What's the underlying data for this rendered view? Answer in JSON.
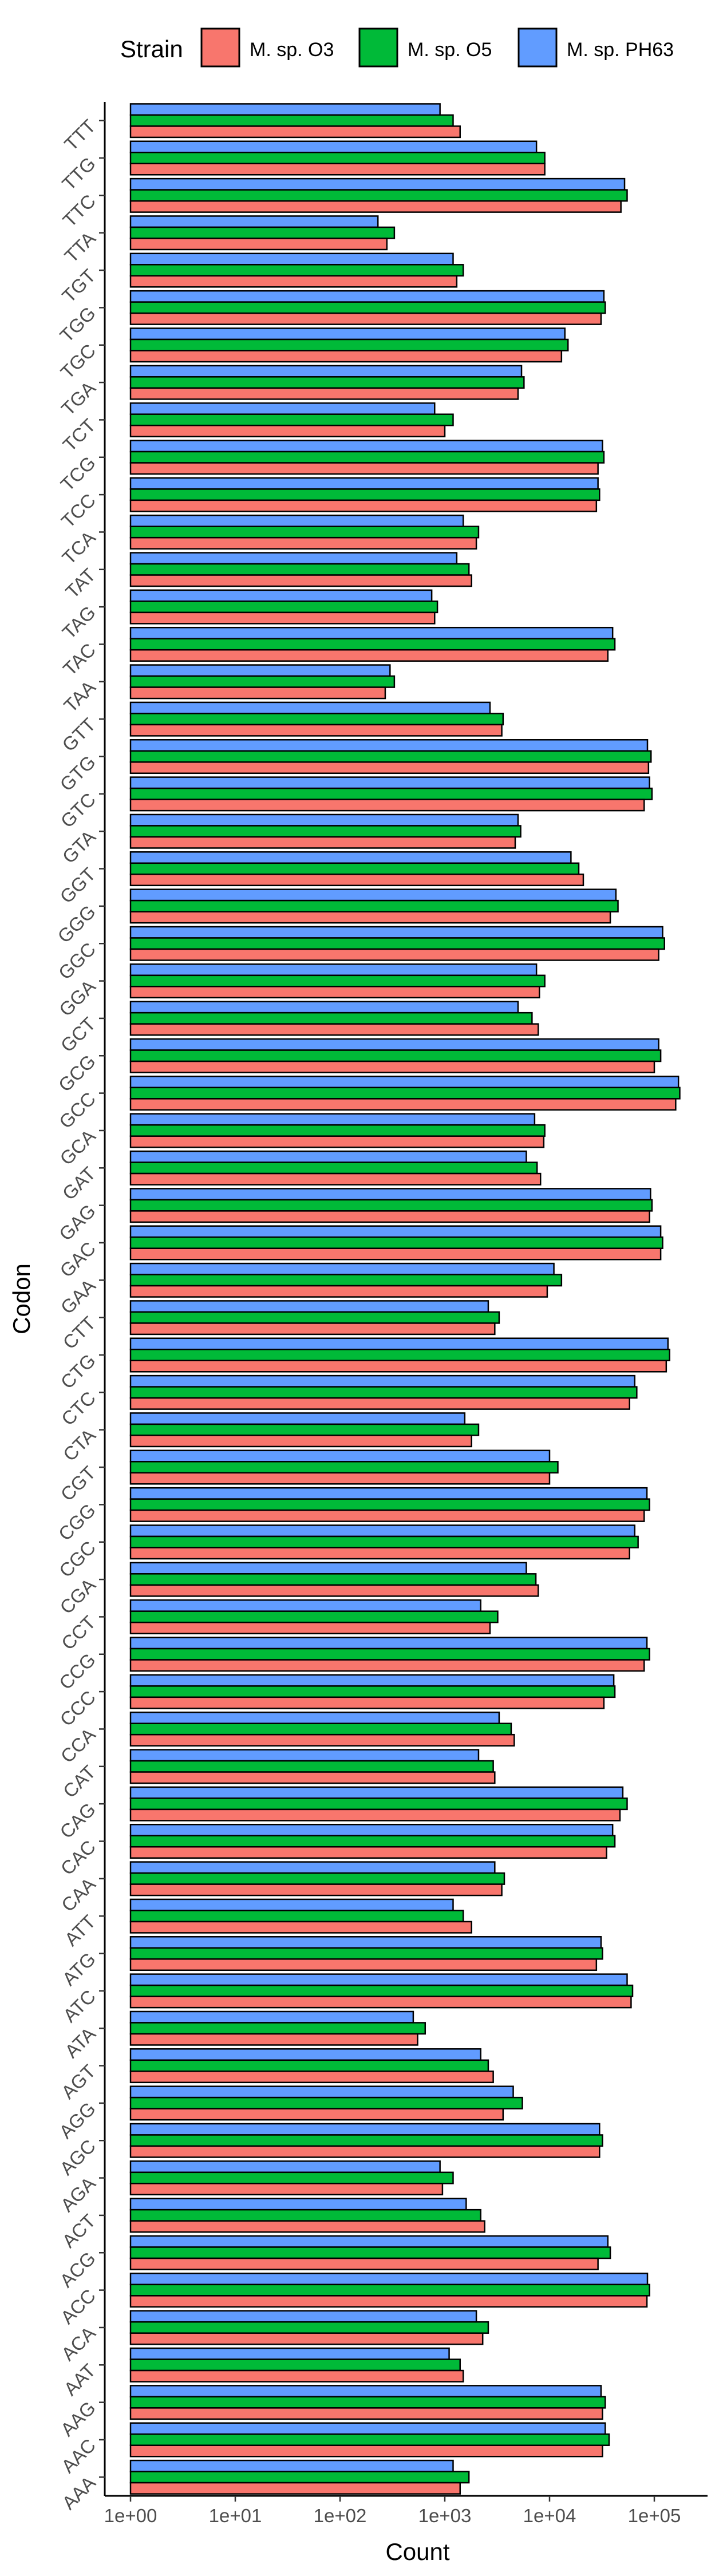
{
  "chart_data": {
    "type": "bar",
    "orientation": "horizontal",
    "xlabel": "Count",
    "ylabel": "Codon",
    "x_scale": "log10",
    "xlim": [
      1,
      200000
    ],
    "x_ticks": [
      {
        "value": 1,
        "label": "1e+00"
      },
      {
        "value": 10,
        "label": "1e+01"
      },
      {
        "value": 100,
        "label": "1e+02"
      },
      {
        "value": 1000,
        "label": "1e+03"
      },
      {
        "value": 10000,
        "label": "1e+04"
      },
      {
        "value": 100000,
        "label": "1e+05"
      }
    ],
    "grid": false,
    "legend": {
      "title": "Strain",
      "position": "top"
    },
    "categories": [
      "TTT",
      "TTG",
      "TTC",
      "TTA",
      "TGT",
      "TGG",
      "TGC",
      "TGA",
      "TCT",
      "TCG",
      "TCC",
      "TCA",
      "TAT",
      "TAG",
      "TAC",
      "TAA",
      "GTT",
      "GTG",
      "GTC",
      "GTA",
      "GGT",
      "GGG",
      "GGC",
      "GGA",
      "GCT",
      "GCG",
      "GCC",
      "GCA",
      "GAT",
      "GAG",
      "GAC",
      "GAA",
      "CTT",
      "CTG",
      "CTC",
      "CTA",
      "CGT",
      "CGG",
      "CGC",
      "CGA",
      "CCT",
      "CCG",
      "CCC",
      "CCA",
      "CAT",
      "CAG",
      "CAC",
      "CAA",
      "ATT",
      "ATG",
      "ATC",
      "ATA",
      "AGT",
      "AGG",
      "AGC",
      "AGA",
      "ACT",
      "ACG",
      "ACC",
      "ACA",
      "AAT",
      "AAG",
      "AAC",
      "AAA"
    ],
    "series": [
      {
        "name": "M. sp. O3",
        "color": "#F8766D",
        "values": [
          1400,
          9000,
          48000,
          280,
          1300,
          31000,
          13000,
          5000,
          1000,
          29000,
          28000,
          2000,
          1800,
          800,
          36000,
          270,
          3500,
          88000,
          80000,
          4700,
          21000,
          38000,
          110000,
          8000,
          7800,
          100000,
          160000,
          8800,
          8200,
          90000,
          115000,
          9500,
          3000,
          130000,
          58000,
          1800,
          10000,
          80000,
          58000,
          7800,
          2700,
          80000,
          33000,
          4600,
          3000,
          47000,
          35000,
          3500,
          1800,
          28000,
          60000,
          550,
          2900,
          3600,
          30000,
          950,
          2400,
          29000,
          85000,
          2300,
          1500,
          32000,
          32000,
          1400
        ]
      },
      {
        "name": "M. sp. O5",
        "color": "#00BA38",
        "values": [
          1200,
          9000,
          55000,
          330,
          1500,
          34000,
          15000,
          5700,
          1200,
          33000,
          30000,
          2100,
          1700,
          850,
          42000,
          330,
          3600,
          93000,
          95000,
          5300,
          19000,
          45000,
          125000,
          9000,
          6800,
          115000,
          175000,
          9000,
          7600,
          95000,
          120000,
          13000,
          3300,
          140000,
          68000,
          2100,
          12000,
          90000,
          70000,
          7400,
          3200,
          90000,
          42000,
          4300,
          2900,
          55000,
          42000,
          3700,
          1500,
          32000,
          62000,
          650,
          2600,
          5500,
          32000,
          1200,
          2200,
          38000,
          90000,
          2600,
          1400,
          34000,
          37000,
          1700
        ]
      },
      {
        "name": "M. sp. PH63",
        "color": "#619CFF",
        "values": [
          900,
          7500,
          52000,
          230,
          1200,
          33000,
          14000,
          5400,
          800,
          32000,
          29000,
          1500,
          1300,
          750,
          40000,
          300,
          2700,
          86000,
          90000,
          5000,
          16000,
          43000,
          120000,
          7500,
          5000,
          110000,
          170000,
          7200,
          6000,
          92000,
          115000,
          11000,
          2600,
          135000,
          65000,
          1550,
          10000,
          85000,
          65000,
          6000,
          2200,
          85000,
          41000,
          3300,
          2100,
          50000,
          40000,
          3000,
          1200,
          31000,
          55000,
          500,
          2200,
          4500,
          30000,
          900,
          1600,
          36000,
          86000,
          2000,
          1100,
          31000,
          34000,
          1200
        ]
      }
    ]
  }
}
